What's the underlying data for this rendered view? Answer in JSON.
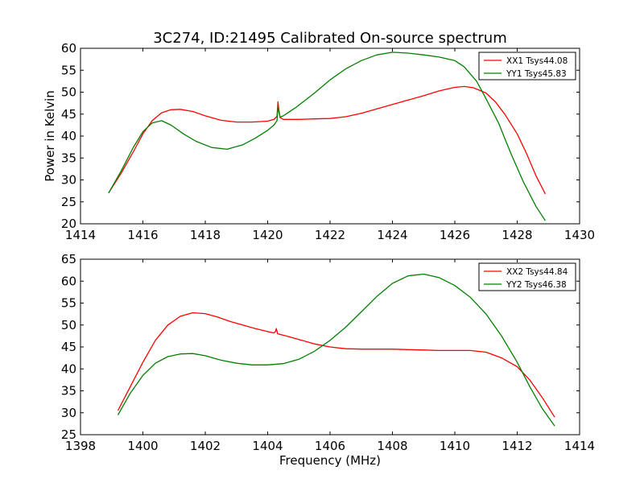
{
  "figure": {
    "title": "3C274, ID:21495 Calibrated On-source spectrum",
    "ylabel": "Power in Kelvin",
    "xlabel": "Frequency (MHz)"
  },
  "chart_data": [
    {
      "type": "line",
      "title": "3C274, ID:21495 Calibrated On-source spectrum",
      "ylabel": "Power in Kelvin",
      "xlabel": "",
      "xlim": [
        1414,
        1430
      ],
      "ylim": [
        20,
        60
      ],
      "xticks": [
        1414,
        1416,
        1418,
        1420,
        1422,
        1424,
        1426,
        1428,
        1430
      ],
      "yticks": [
        20,
        25,
        30,
        35,
        40,
        45,
        50,
        55,
        60
      ],
      "grid": false,
      "legend_position": "top-right",
      "series": [
        {
          "name": "XX1 Tsys44.08",
          "color": "#ff0000",
          "x": [
            1414.9,
            1415.3,
            1415.7,
            1416.0,
            1416.3,
            1416.6,
            1416.9,
            1417.2,
            1417.6,
            1418.0,
            1418.5,
            1419.0,
            1419.5,
            1420.0,
            1420.2,
            1420.3,
            1420.33,
            1420.36,
            1420.4,
            1420.5,
            1421.0,
            1421.5,
            1422.0,
            1422.5,
            1423.0,
            1423.5,
            1424.0,
            1424.5,
            1425.0,
            1425.5,
            1426.0,
            1426.3,
            1426.6,
            1427.0,
            1427.3,
            1427.6,
            1428.0,
            1428.3,
            1428.6,
            1428.9
          ],
          "values": [
            27.0,
            31.5,
            36.5,
            40.5,
            43.5,
            45.3,
            46.0,
            46.1,
            45.6,
            44.6,
            43.6,
            43.2,
            43.2,
            43.4,
            43.8,
            44.5,
            47.8,
            46.0,
            44.2,
            43.8,
            43.8,
            43.9,
            44.0,
            44.4,
            45.2,
            46.2,
            47.2,
            48.2,
            49.2,
            50.3,
            51.1,
            51.3,
            51.0,
            49.8,
            47.8,
            45.0,
            40.5,
            36.0,
            31.0,
            26.8
          ]
        },
        {
          "name": "YY1 Tsys45.83",
          "color": "#008000",
          "x": [
            1414.9,
            1415.3,
            1415.7,
            1416.0,
            1416.3,
            1416.6,
            1416.9,
            1417.3,
            1417.7,
            1418.2,
            1418.7,
            1419.2,
            1419.6,
            1420.0,
            1420.2,
            1420.3,
            1420.33,
            1420.36,
            1420.4,
            1420.5,
            1420.9,
            1421.5,
            1422.0,
            1422.5,
            1423.0,
            1423.5,
            1424.0,
            1424.5,
            1425.0,
            1425.5,
            1426.0,
            1426.3,
            1426.7,
            1427.0,
            1427.4,
            1427.8,
            1428.2,
            1428.6,
            1428.9
          ],
          "values": [
            27.0,
            32.0,
            37.5,
            41.0,
            43.0,
            43.5,
            42.5,
            40.5,
            38.8,
            37.4,
            37.0,
            38.0,
            39.5,
            41.3,
            42.5,
            43.5,
            47.0,
            45.5,
            44.3,
            44.6,
            46.5,
            49.8,
            52.8,
            55.3,
            57.2,
            58.5,
            59.1,
            58.9,
            58.5,
            58.0,
            57.2,
            55.8,
            52.5,
            48.5,
            43.0,
            36.0,
            29.5,
            24.0,
            20.7
          ]
        }
      ]
    },
    {
      "type": "line",
      "title": "",
      "ylabel": "",
      "xlabel": "Frequency (MHz)",
      "xlim": [
        1398,
        1414
      ],
      "ylim": [
        25,
        65
      ],
      "xticks": [
        1398,
        1400,
        1402,
        1404,
        1406,
        1408,
        1410,
        1412,
        1414
      ],
      "yticks": [
        25,
        30,
        35,
        40,
        45,
        50,
        55,
        60,
        65
      ],
      "grid": false,
      "legend_position": "top-right",
      "series": [
        {
          "name": "XX2 Tsys44.84",
          "color": "#ff0000",
          "x": [
            1399.2,
            1399.6,
            1400.0,
            1400.4,
            1400.8,
            1401.2,
            1401.6,
            1402.0,
            1402.4,
            1402.8,
            1403.2,
            1403.6,
            1404.0,
            1404.2,
            1404.25,
            1404.28,
            1404.32,
            1404.6,
            1405.0,
            1405.5,
            1406.0,
            1406.5,
            1407.0,
            1407.5,
            1408.0,
            1408.5,
            1409.0,
            1409.5,
            1410.0,
            1410.5,
            1411.0,
            1411.5,
            1412.0,
            1412.4,
            1412.8,
            1413.2
          ],
          "values": [
            30.5,
            36.0,
            41.5,
            46.5,
            50.0,
            52.0,
            52.8,
            52.6,
            51.8,
            50.8,
            50.0,
            49.2,
            48.5,
            48.2,
            48.5,
            49.2,
            48.0,
            47.5,
            46.7,
            45.7,
            45.0,
            44.6,
            44.5,
            44.5,
            44.5,
            44.4,
            44.3,
            44.2,
            44.2,
            44.2,
            43.8,
            42.5,
            40.5,
            37.5,
            33.5,
            29.0
          ]
        },
        {
          "name": "YY2 Tsys46.38",
          "color": "#008000",
          "x": [
            1399.2,
            1399.6,
            1400.0,
            1400.4,
            1400.8,
            1401.2,
            1401.6,
            1402.0,
            1402.5,
            1403.0,
            1403.5,
            1404.0,
            1404.5,
            1405.0,
            1405.5,
            1406.0,
            1406.5,
            1407.0,
            1407.5,
            1408.0,
            1408.5,
            1409.0,
            1409.5,
            1410.0,
            1410.5,
            1411.0,
            1411.5,
            1412.0,
            1412.4,
            1412.8,
            1413.2
          ],
          "values": [
            29.5,
            34.5,
            38.5,
            41.3,
            42.8,
            43.4,
            43.5,
            43.0,
            42.0,
            41.3,
            40.9,
            40.9,
            41.2,
            42.2,
            44.0,
            46.5,
            49.5,
            53.0,
            56.5,
            59.5,
            61.2,
            61.6,
            60.8,
            59.0,
            56.3,
            52.5,
            47.5,
            41.5,
            36.0,
            31.0,
            27.0
          ]
        }
      ]
    }
  ]
}
